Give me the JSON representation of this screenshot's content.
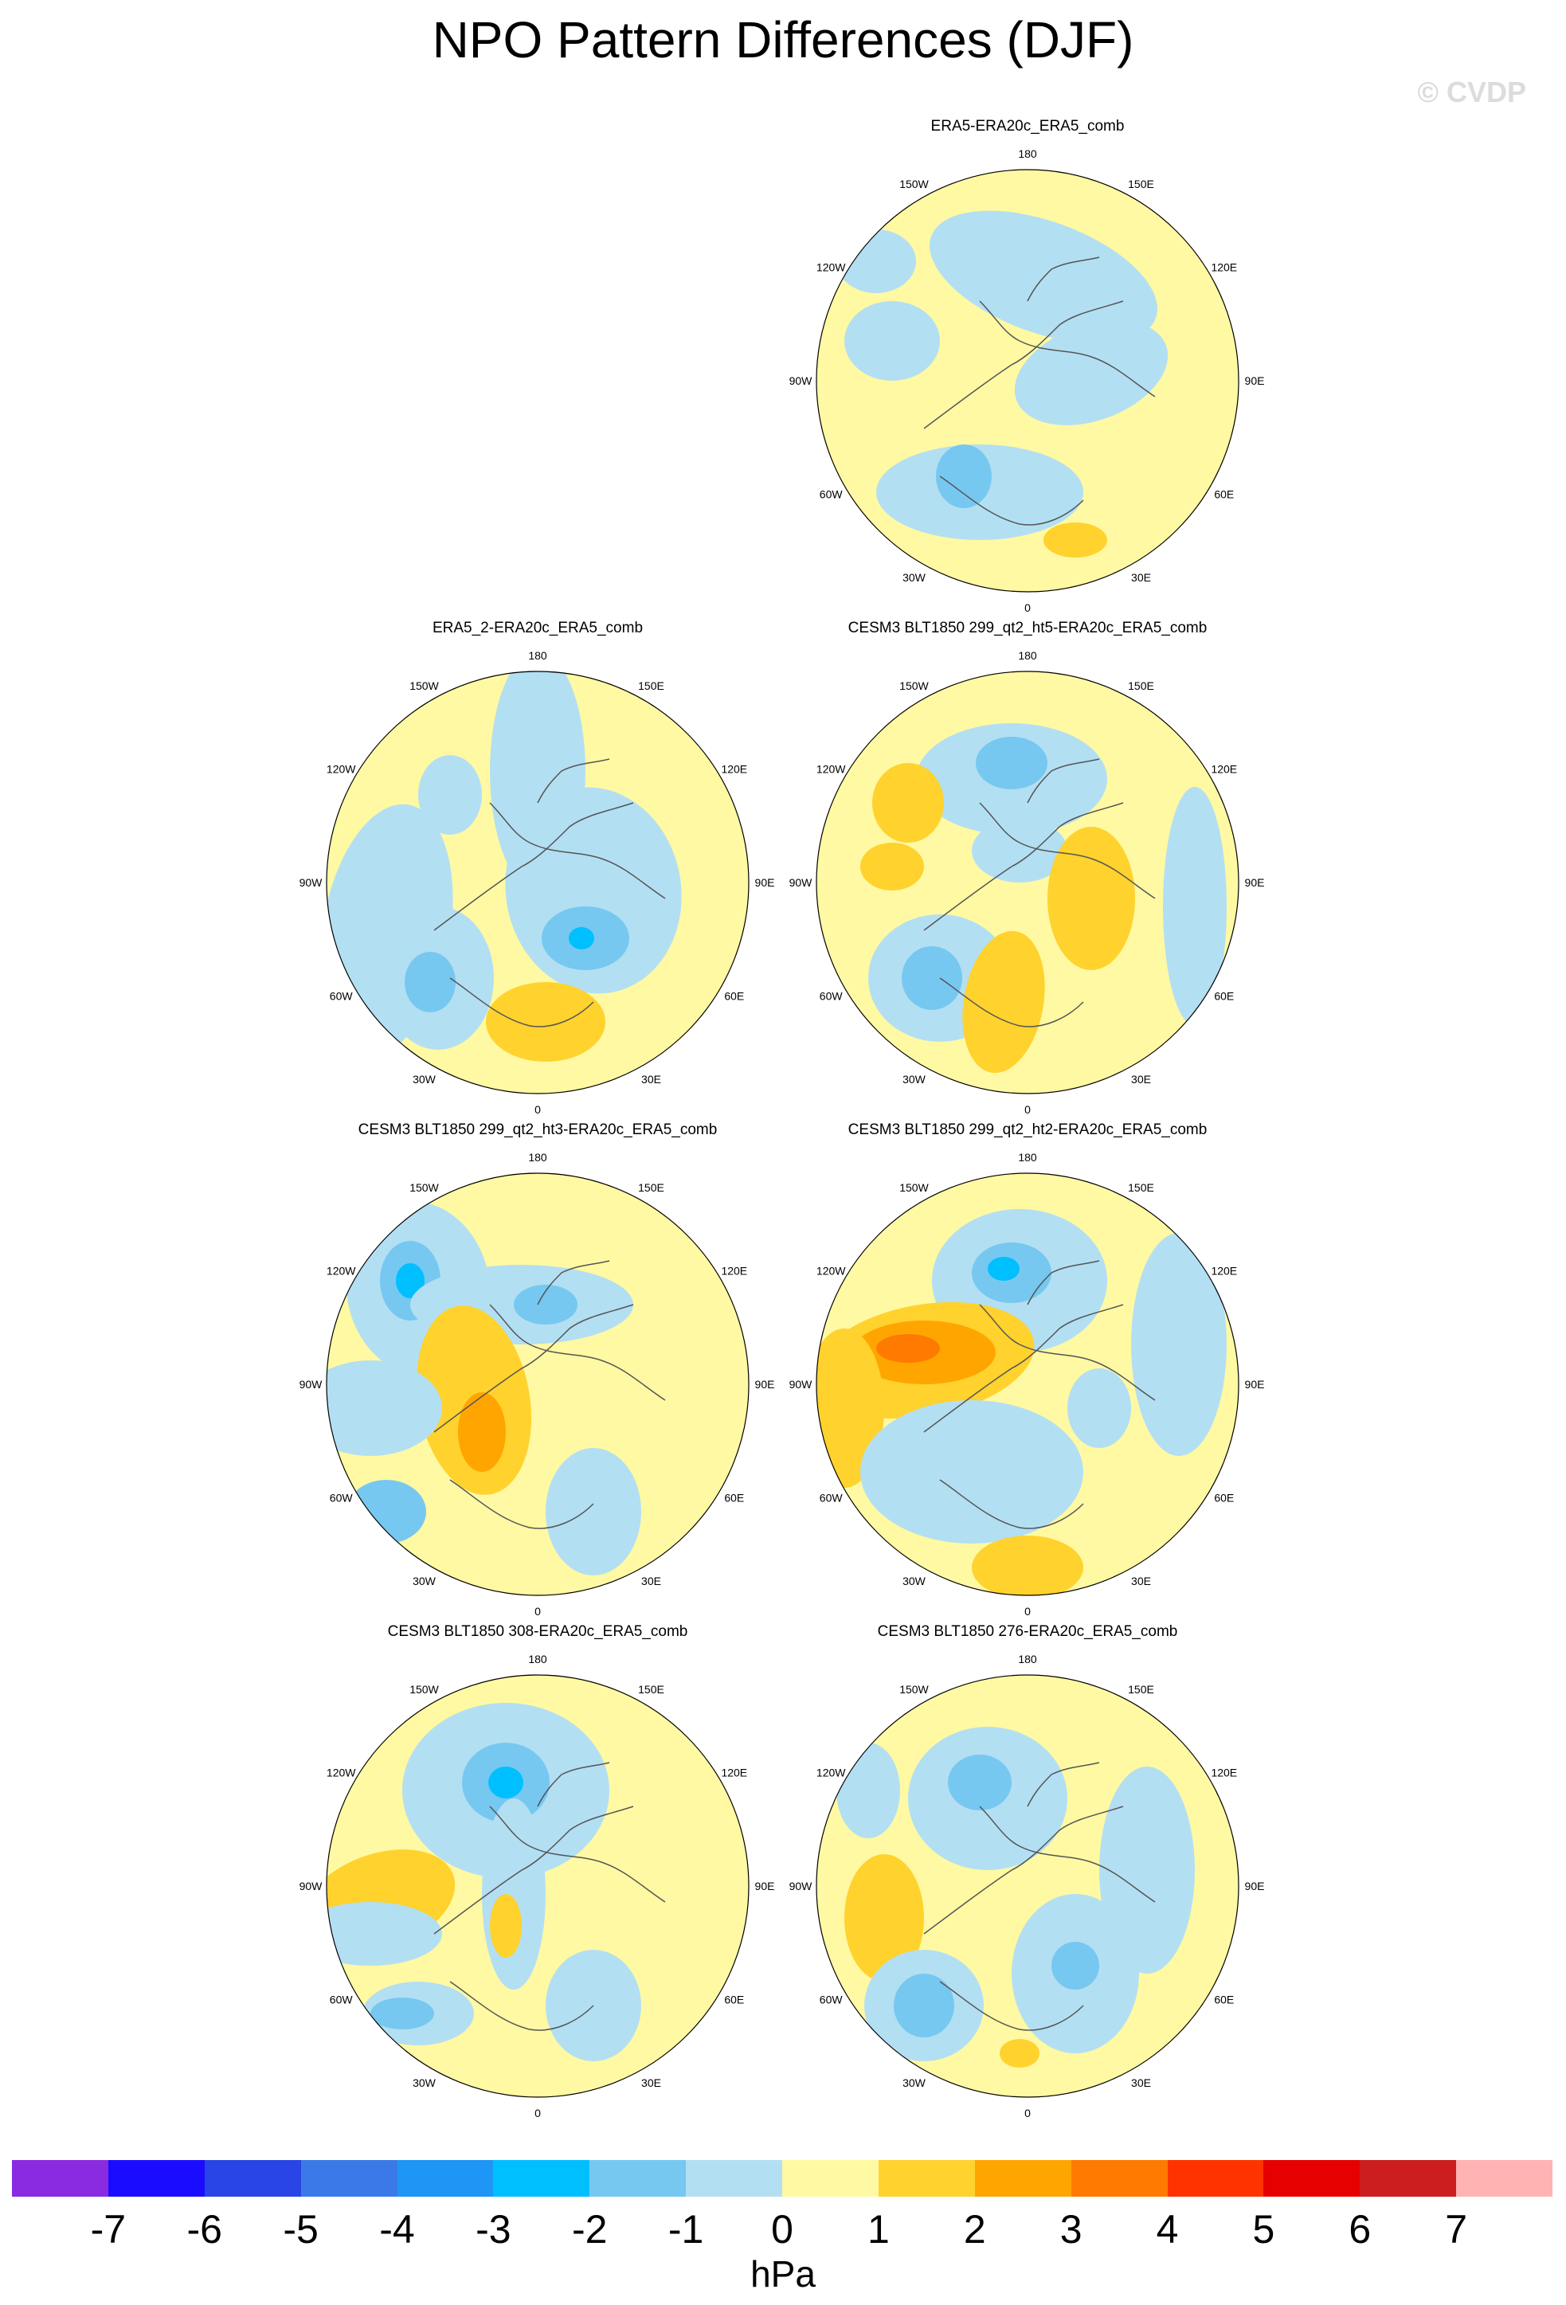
{
  "title": "NPO Pattern Differences (DJF)",
  "watermark": "© CVDP",
  "lon_labels": [
    "180",
    "150E",
    "120E",
    "90E",
    "60E",
    "30E",
    "0",
    "30W",
    "60W",
    "90W",
    "120W",
    "150W"
  ],
  "panels": [
    {
      "title": "ERA5-ERA20c_ERA5_comb"
    },
    {
      "title": "ERA5_2-ERA20c_ERA5_comb"
    },
    {
      "title": "CESM3 BLT1850 299_qt2_ht5-ERA20c_ERA5_comb"
    },
    {
      "title": "CESM3 BLT1850 299_qt2_ht3-ERA20c_ERA5_comb"
    },
    {
      "title": "CESM3 BLT1850 299_qt2_ht2-ERA20c_ERA5_comb"
    },
    {
      "title": "CESM3 BLT1850 308-ERA20c_ERA5_comb"
    },
    {
      "title": "CESM3 BLT1850 276-ERA20c_ERA5_comb"
    }
  ],
  "colorbar": {
    "colors": [
      "#8a2be2",
      "#1a0dff",
      "#2a45e6",
      "#3a7ae8",
      "#1e96f5",
      "#00bfff",
      "#76c8f0",
      "#b3dff3",
      "#fff9a3",
      "#ffd22e",
      "#ffa500",
      "#ff7a00",
      "#ff3300",
      "#e60000",
      "#cc1e1e",
      "#ffb3b3"
    ],
    "ticks": [
      "-7",
      "-6",
      "-5",
      "-4",
      "-3",
      "-2",
      "-1",
      "0",
      "1",
      "2",
      "3",
      "4",
      "5",
      "6",
      "7"
    ],
    "units": "hPa"
  }
}
